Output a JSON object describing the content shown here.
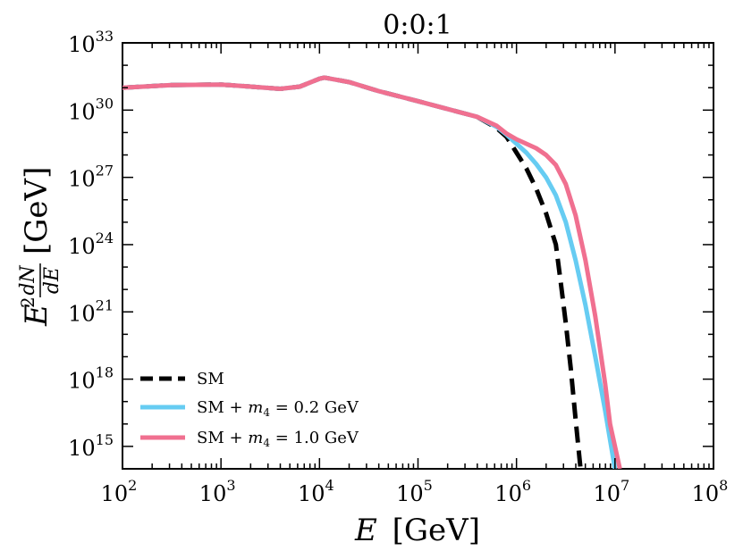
{
  "chart_data": {
    "type": "line",
    "title": "0:0:1",
    "xlabel": "E [GeV]",
    "ylabel": "E^2 dN/dE [GeV]",
    "xscale": "log",
    "yscale": "log",
    "xlim_log10": [
      2,
      8
    ],
    "ylim_log10": [
      14,
      33
    ],
    "x_ticks": [
      {
        "base": "10",
        "exp": "2"
      },
      {
        "base": "10",
        "exp": "3"
      },
      {
        "base": "10",
        "exp": "4"
      },
      {
        "base": "10",
        "exp": "5"
      },
      {
        "base": "10",
        "exp": "6"
      },
      {
        "base": "10",
        "exp": "7"
      },
      {
        "base": "10",
        "exp": "8"
      }
    ],
    "y_ticks": [
      {
        "base": "10",
        "exp": "15"
      },
      {
        "base": "10",
        "exp": "18"
      },
      {
        "base": "10",
        "exp": "21"
      },
      {
        "base": "10",
        "exp": "24"
      },
      {
        "base": "10",
        "exp": "27"
      },
      {
        "base": "10",
        "exp": "30"
      },
      {
        "base": "10",
        "exp": "33"
      }
    ],
    "legend_position": "bottom-left",
    "series": [
      {
        "name": "SM",
        "color": "#000000",
        "style": "dashed",
        "points_log10": [
          [
            2.0,
            31.0
          ],
          [
            2.5,
            31.12
          ],
          [
            3.0,
            31.14
          ],
          [
            3.3,
            31.05
          ],
          [
            3.6,
            30.95
          ],
          [
            3.8,
            31.05
          ],
          [
            4.0,
            31.4
          ],
          [
            4.05,
            31.45
          ],
          [
            4.3,
            31.25
          ],
          [
            4.6,
            30.85
          ],
          [
            5.0,
            30.4
          ],
          [
            5.3,
            30.05
          ],
          [
            5.6,
            29.7
          ],
          [
            5.8,
            29.2
          ],
          [
            5.9,
            28.8
          ],
          [
            6.0,
            28.1
          ],
          [
            6.1,
            27.4
          ],
          [
            6.2,
            26.5
          ],
          [
            6.3,
            25.4
          ],
          [
            6.4,
            24.0
          ],
          [
            6.45,
            22.3
          ],
          [
            6.5,
            20.5
          ],
          [
            6.55,
            18.5
          ],
          [
            6.6,
            16.2
          ],
          [
            6.65,
            14.0
          ]
        ]
      },
      {
        "name": "SM + m_4 = 0.2 GeV",
        "color": "#66ccf2",
        "style": "solid",
        "points_log10": [
          [
            2.0,
            31.0
          ],
          [
            2.5,
            31.12
          ],
          [
            3.0,
            31.14
          ],
          [
            3.3,
            31.05
          ],
          [
            3.6,
            30.95
          ],
          [
            3.8,
            31.05
          ],
          [
            4.0,
            31.4
          ],
          [
            4.05,
            31.45
          ],
          [
            4.3,
            31.25
          ],
          [
            4.6,
            30.85
          ],
          [
            5.0,
            30.4
          ],
          [
            5.3,
            30.05
          ],
          [
            5.6,
            29.7
          ],
          [
            5.8,
            29.25
          ],
          [
            5.9,
            28.9
          ],
          [
            6.0,
            28.5
          ],
          [
            6.1,
            28.1
          ],
          [
            6.2,
            27.6
          ],
          [
            6.3,
            27.0
          ],
          [
            6.4,
            26.2
          ],
          [
            6.5,
            25.0
          ],
          [
            6.6,
            23.3
          ],
          [
            6.7,
            21.3
          ],
          [
            6.8,
            19.0
          ],
          [
            6.9,
            16.6
          ],
          [
            7.0,
            14.0
          ]
        ]
      },
      {
        "name": "SM + m_4 = 1.0 GeV",
        "color": "#f07090",
        "style": "solid",
        "points_log10": [
          [
            2.0,
            31.0
          ],
          [
            2.5,
            31.12
          ],
          [
            3.0,
            31.14
          ],
          [
            3.3,
            31.05
          ],
          [
            3.6,
            30.95
          ],
          [
            3.8,
            31.05
          ],
          [
            4.0,
            31.4
          ],
          [
            4.05,
            31.45
          ],
          [
            4.3,
            31.25
          ],
          [
            4.6,
            30.85
          ],
          [
            5.0,
            30.4
          ],
          [
            5.3,
            30.05
          ],
          [
            5.6,
            29.7
          ],
          [
            5.8,
            29.3
          ],
          [
            5.9,
            28.95
          ],
          [
            6.0,
            28.7
          ],
          [
            6.1,
            28.5
          ],
          [
            6.2,
            28.3
          ],
          [
            6.3,
            28.0
          ],
          [
            6.4,
            27.55
          ],
          [
            6.5,
            26.7
          ],
          [
            6.6,
            25.3
          ],
          [
            6.7,
            23.3
          ],
          [
            6.8,
            20.8
          ],
          [
            6.9,
            17.8
          ],
          [
            6.95,
            16.0
          ],
          [
            7.05,
            14.0
          ]
        ]
      }
    ]
  },
  "legend": {
    "items": [
      {
        "pre": "SM",
        "sym": "",
        "sub": "",
        "post": "",
        "color": "#000000",
        "dash": true
      },
      {
        "pre": "SM + ",
        "sym": "m",
        "sub": "4",
        "post": " = 0.2 GeV",
        "color": "#66ccf2",
        "dash": false
      },
      {
        "pre": "SM + ",
        "sym": "m",
        "sub": "4",
        "post": " = 1.0 GeV",
        "color": "#f07090",
        "dash": false
      }
    ]
  },
  "axis_text": {
    "x_var": "E",
    "x_unit": "[GeV]",
    "y_var": "E",
    "y_power": "2",
    "y_num": "dN",
    "y_den": "dE",
    "y_unit": "[GeV]"
  }
}
